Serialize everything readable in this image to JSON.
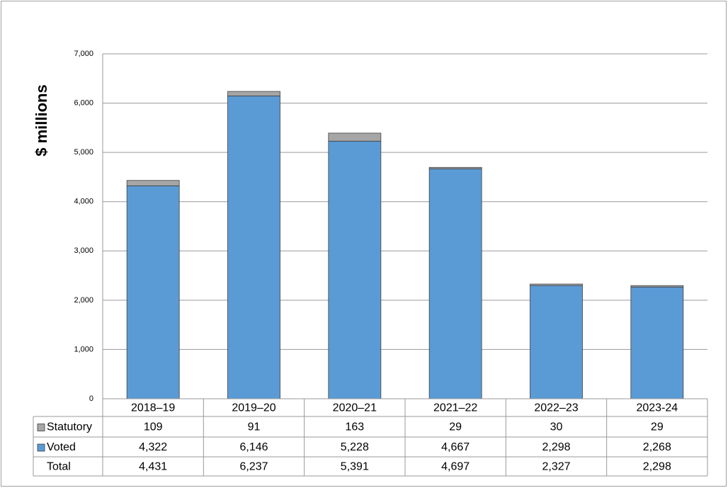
{
  "chart_data": {
    "type": "bar",
    "stacked": true,
    "y_label": "$ millions",
    "categories": [
      "2018–19",
      "2019–20",
      "2020–21",
      "2021–22",
      "2022–23",
      "2023-24"
    ],
    "series": [
      {
        "name": "Voted",
        "color": "#5b9bd5",
        "values": [
          4322,
          6146,
          5228,
          4667,
          2298,
          2268
        ],
        "value_labels": [
          "4,322",
          "6,146",
          "5,228",
          "4,667",
          "2,298",
          "2,268"
        ]
      },
      {
        "name": "Statutory",
        "color": "#a6a6a6",
        "values": [
          109,
          91,
          163,
          29,
          30,
          29
        ]
      }
    ],
    "total_row": {
      "label": "Total",
      "cells": [
        "4,431",
        "6,237",
        "5,391",
        "4,697",
        "2,327",
        "2,298"
      ]
    },
    "ylim": [
      0,
      7000
    ],
    "yticks": [
      0,
      {
        "value": 1000,
        "label": "1,000"
      },
      {
        "value": 2000,
        "label": "2,000"
      },
      {
        "value": 3000,
        "label": "3,000"
      },
      {
        "value": 4000,
        "label": "4,000"
      },
      {
        "value": 5000,
        "label": "5,000"
      },
      {
        "value": 6000,
        "label": "6,000"
      },
      {
        "value": 7000,
        "label": "7,000"
      }
    ],
    "grid": true
  }
}
